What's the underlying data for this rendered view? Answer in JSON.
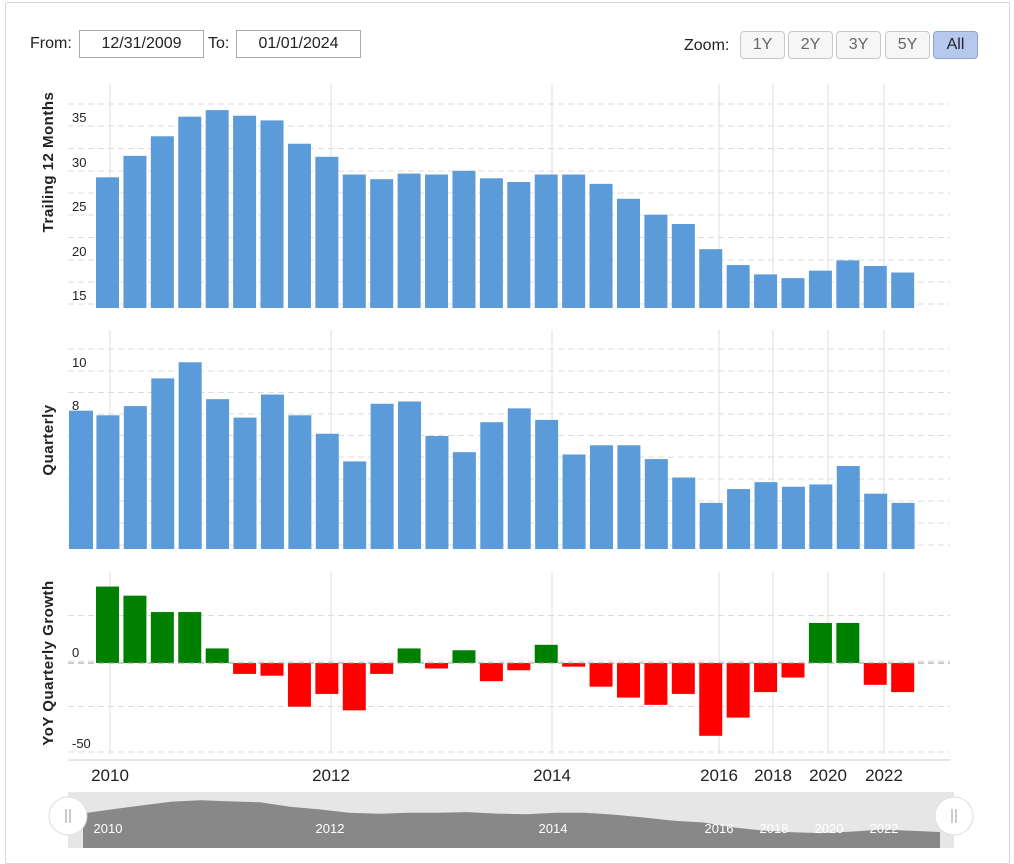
{
  "range": {
    "from_label": "From:",
    "from_value": "12/31/2009",
    "to_label": "To:",
    "to_value": "01/01/2024"
  },
  "zoom": {
    "label": "Zoom:",
    "buttons": [
      {
        "label": "1Y",
        "active": false
      },
      {
        "label": "2Y",
        "active": false
      },
      {
        "label": "3Y",
        "active": false
      },
      {
        "label": "5Y",
        "active": false
      },
      {
        "label": "All",
        "active": true
      }
    ]
  },
  "colors": {
    "bar": "#5b9bd9",
    "positive": "#008000",
    "negative": "#ff0000",
    "grid": "#dcdcdc",
    "navigator_fill": "#888888",
    "navigator_bg": "#e6e6e6"
  },
  "chart_data": {
    "type": "bar",
    "x_axis_labels": [
      "2010",
      "2012",
      "2014",
      "2016",
      "2018",
      "2020",
      "2022"
    ],
    "panels": [
      {
        "ylabel": "Trailing 12 Months",
        "ylim": [
          15,
          39
        ],
        "yticks": [
          "15",
          "20",
          "25",
          "30",
          "35"
        ],
        "values": [
          29.0,
          31.3,
          33.4,
          35.5,
          36.2,
          35.6,
          35.1,
          32.6,
          31.2,
          29.3,
          28.8,
          29.4,
          29.3,
          29.7,
          28.9,
          28.5,
          29.3,
          29.3,
          28.3,
          26.7,
          25.0,
          24.0,
          21.3,
          19.6,
          18.6,
          18.2,
          19.0,
          20.1,
          19.5,
          18.8
        ]
      },
      {
        "ylabel": "Quarterly",
        "ylim": [
          2,
          11.5
        ],
        "yticks": [
          "2",
          "4",
          "6",
          "8",
          "10"
        ],
        "values": [
          8.0,
          7.8,
          8.2,
          9.4,
          10.1,
          8.5,
          7.7,
          8.7,
          7.8,
          7.0,
          5.8,
          8.3,
          8.4,
          6.9,
          6.2,
          7.5,
          8.1,
          7.6,
          6.1,
          6.5,
          6.5,
          5.9,
          5.1,
          4.0,
          4.6,
          4.9,
          4.7,
          4.8,
          5.6,
          4.4,
          4.0
        ]
      },
      {
        "ylabel": "YoY Quarterly Growth",
        "ylim": [
          -50,
          50
        ],
        "yticks": [
          "-50",
          "0"
        ],
        "values": [
          42,
          37,
          28,
          28,
          8,
          -6,
          -7,
          -24,
          -17,
          -26,
          -6,
          8,
          -3,
          7,
          -10,
          -4,
          10,
          -2,
          -13,
          -19,
          -23,
          -17,
          -40,
          -30,
          -16,
          -8,
          22,
          22,
          -12,
          -16
        ]
      }
    ],
    "navigator": {
      "labels": [
        "2010",
        "2012",
        "2014",
        "2016",
        "2018",
        "2020",
        "2022"
      ]
    }
  }
}
